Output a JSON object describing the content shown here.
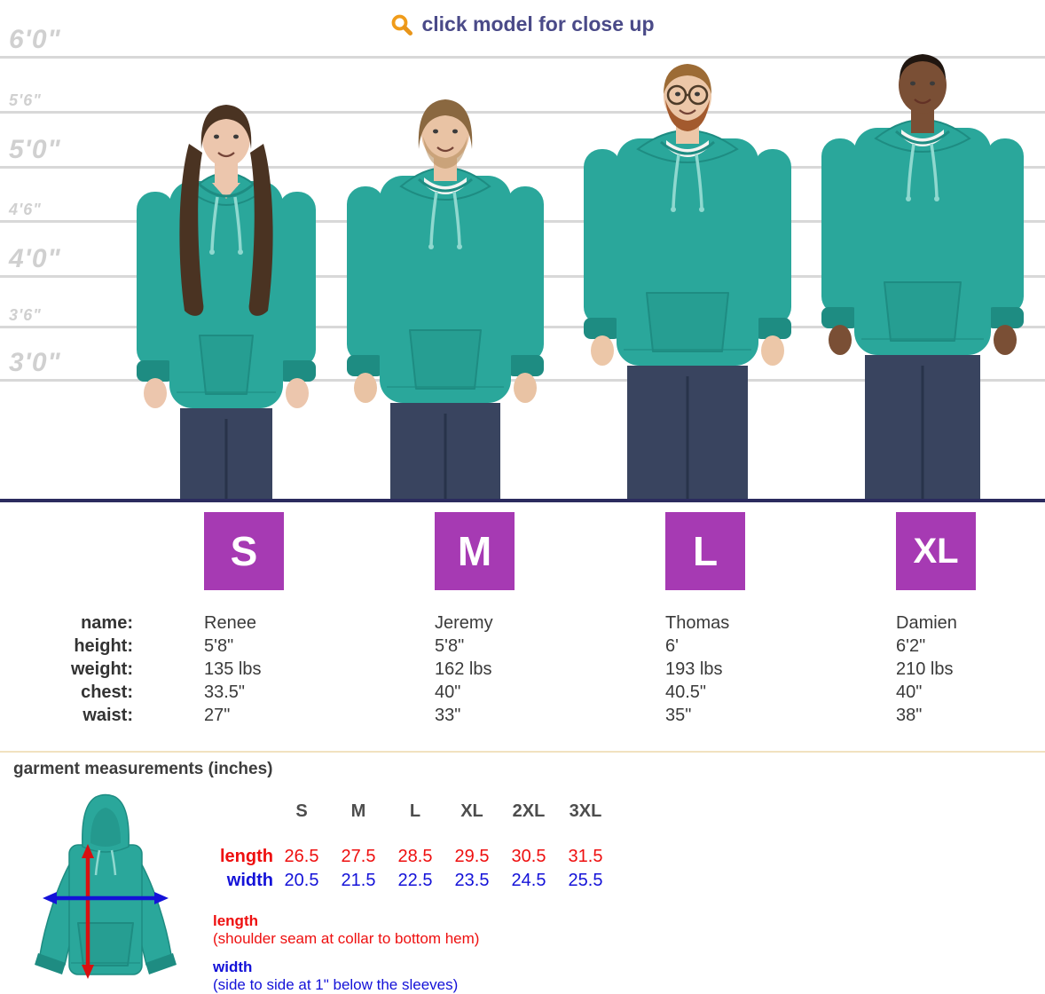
{
  "header": {
    "title": "click model for close up",
    "icon": "magnifier-icon"
  },
  "height_chart": {
    "ruler": [
      {
        "label": "6'0\"",
        "size": "large"
      },
      {
        "label": "5'6\"",
        "size": "small"
      },
      {
        "label": "5'0\"",
        "size": "large"
      },
      {
        "label": "4'6\"",
        "size": "small"
      },
      {
        "label": "4'0\"",
        "size": "large"
      },
      {
        "label": "3'6\"",
        "size": "small"
      },
      {
        "label": "3'0\"",
        "size": "large"
      }
    ]
  },
  "stats_labels": {
    "name": "name:",
    "height": "height:",
    "weight": "weight:",
    "chest": "chest:",
    "waist": "waist:"
  },
  "models": [
    {
      "size": "S",
      "name": "Renee",
      "height": "5'8\"",
      "weight": "135 lbs",
      "chest": "33.5\"",
      "waist": "27\"",
      "appearance": {
        "skin": "#ecc6ad",
        "hair": "#4a3322",
        "hair_style": "long",
        "tee": false,
        "glasses": false,
        "beard": null
      }
    },
    {
      "size": "M",
      "name": "Jeremy",
      "height": "5'8\"",
      "weight": "162 lbs",
      "chest": "40\"",
      "waist": "33\"",
      "appearance": {
        "skin": "#e9c3a4",
        "hair": "#8a6840",
        "hair_style": "shaggy",
        "tee": true,
        "glasses": false,
        "beard": "rgba(176,137,88,0.55)"
      }
    },
    {
      "size": "L",
      "name": "Thomas",
      "height": "6'",
      "weight": "193 lbs",
      "chest": "40.5\"",
      "waist": "35\"",
      "appearance": {
        "skin": "#ecc7a8",
        "hair": "#9c6b35",
        "hair_style": "short",
        "tee": true,
        "glasses": true,
        "beard": "#a35a2e"
      }
    },
    {
      "size": "XL",
      "name": "Damien",
      "height": "6'2\"",
      "weight": "210 lbs",
      "chest": "40\"",
      "waist": "38\"",
      "appearance": {
        "skin": "#7a4f35",
        "hair": "#201610",
        "hair_style": "buzz",
        "tee": true,
        "glasses": false,
        "beard": null
      }
    }
  ],
  "garment": {
    "title": "garment measurements (inches)",
    "table": {
      "columns": [
        "S",
        "M",
        "L",
        "XL",
        "2XL",
        "3XL"
      ],
      "rows": [
        {
          "label": "length",
          "values": [
            26.5,
            27.5,
            28.5,
            29.5,
            30.5,
            31.5
          ]
        },
        {
          "label": "width",
          "values": [
            20.5,
            21.5,
            22.5,
            23.5,
            24.5,
            25.5
          ]
        }
      ]
    },
    "legend": [
      {
        "term": "length",
        "desc": "(shoulder seam at collar to bottom hem)"
      },
      {
        "term": "width",
        "desc": "(side to side at 1\" below the sleeves)"
      }
    ]
  },
  "colors": {
    "hoodie_teal": "#2aa79b",
    "hoodie_dark": "#1e8c82",
    "drawstring": "#8fd8cf",
    "jeans": "#39445f",
    "jeans_dark": "#28334a",
    "navy_divider": "#2b2b5e",
    "beige_divider": "#f1e2c0",
    "badge_purple": "#a63ab3",
    "header_text": "#4a4a88",
    "icon_orange": "#f09c1a",
    "ruler_line": "#d8d8d8",
    "ruler_text": "#d0d0d0",
    "length_red": "#ee0f0f",
    "width_blue": "#1412d8"
  }
}
